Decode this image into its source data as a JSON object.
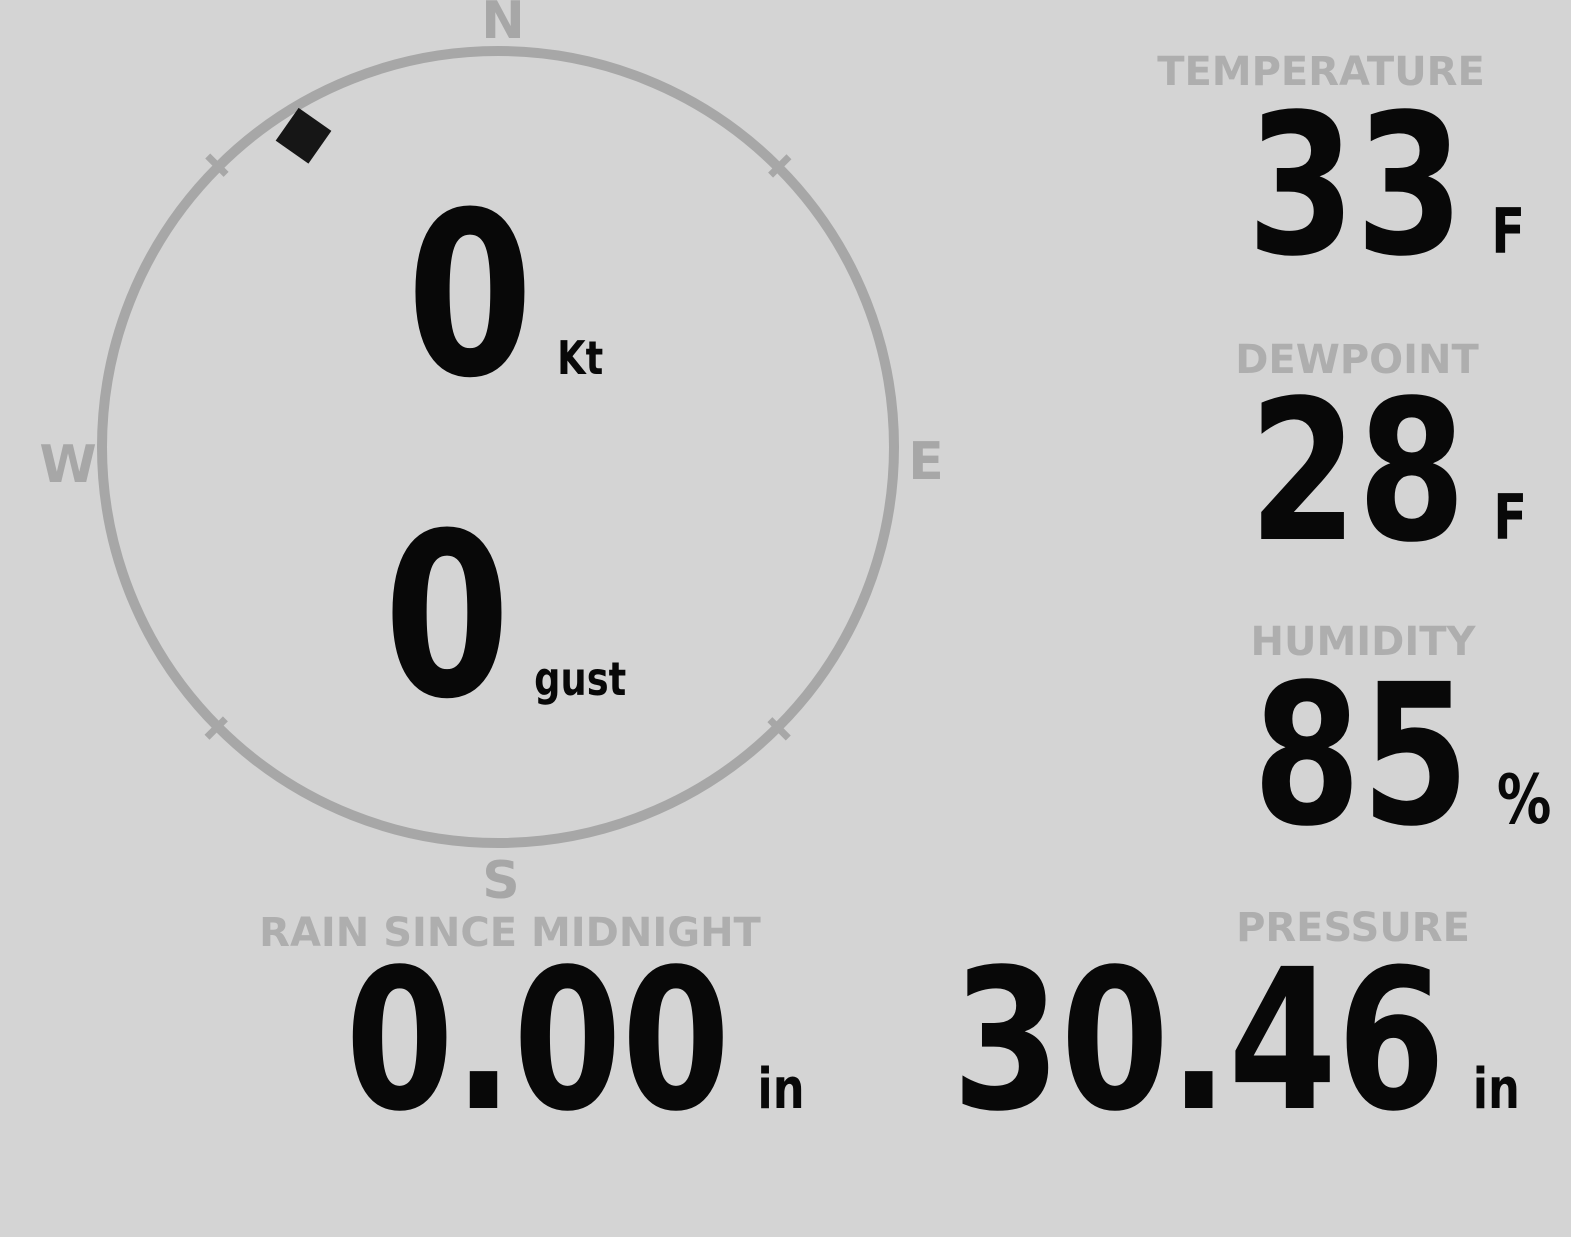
{
  "theme": {
    "background": "#d4d4d4",
    "gauge_gray": "#a7a7a7",
    "label_gray": "#aeaeae",
    "value_black": "#080808",
    "marker_black": "#161616"
  },
  "compass": {
    "cardinals": {
      "north": "N",
      "east": "E",
      "south": "S",
      "west": "W"
    },
    "wind": {
      "speed": "0",
      "speed_unit": "Kt",
      "gust": "0",
      "gust_unit": "gust",
      "direction_deg": 328
    }
  },
  "readouts": {
    "temperature": {
      "label": "TEMPERATURE",
      "value": "33",
      "unit": "F"
    },
    "dewpoint": {
      "label": "DEWPOINT",
      "value": "28",
      "unit": "F"
    },
    "humidity": {
      "label": "HUMIDITY",
      "value": "85",
      "unit": "%"
    },
    "rain": {
      "label": "RAIN SINCE MIDNIGHT",
      "value": "0.00",
      "unit": "in"
    },
    "pressure": {
      "label": "PRESSURE",
      "value": "30.46",
      "unit": "in"
    }
  }
}
